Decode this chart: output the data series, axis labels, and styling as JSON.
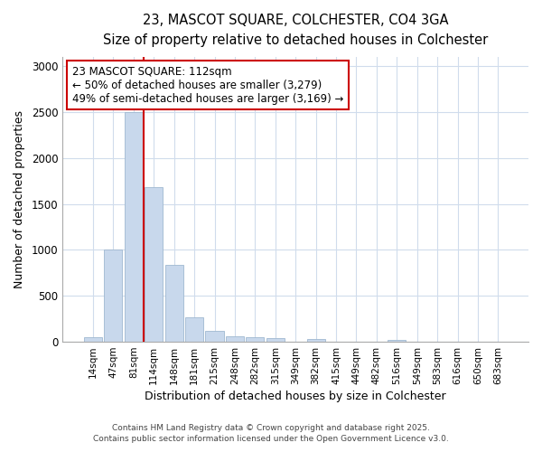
{
  "title": "23, MASCOT SQUARE, COLCHESTER, CO4 3GA",
  "subtitle": "Size of property relative to detached houses in Colchester",
  "xlabel": "Distribution of detached houses by size in Colchester",
  "ylabel": "Number of detached properties",
  "bar_color": "#c8d8ec",
  "bar_edge_color": "#a0b8d0",
  "bins": [
    "14sqm",
    "47sqm",
    "81sqm",
    "114sqm",
    "148sqm",
    "181sqm",
    "215sqm",
    "248sqm",
    "282sqm",
    "315sqm",
    "349sqm",
    "382sqm",
    "415sqm",
    "449sqm",
    "482sqm",
    "516sqm",
    "549sqm",
    "583sqm",
    "616sqm",
    "650sqm",
    "683sqm"
  ],
  "values": [
    50,
    1000,
    2500,
    1680,
    840,
    270,
    120,
    60,
    50,
    40,
    0,
    30,
    0,
    0,
    0,
    20,
    0,
    0,
    0,
    0,
    0
  ],
  "ylim": [
    0,
    3100
  ],
  "yticks": [
    0,
    500,
    1000,
    1500,
    2000,
    2500,
    3000
  ],
  "vline_color": "#cc0000",
  "annotation_text": "23 MASCOT SQUARE: 112sqm\n← 50% of detached houses are smaller (3,279)\n49% of semi-detached houses are larger (3,169) →",
  "annotation_box_color": "#ffffff",
  "annotation_box_edge": "#cc0000",
  "footer1": "Contains HM Land Registry data © Crown copyright and database right 2025.",
  "footer2": "Contains public sector information licensed under the Open Government Licence v3.0.",
  "bg_color": "#ffffff",
  "grid_color": "#d0dcec"
}
